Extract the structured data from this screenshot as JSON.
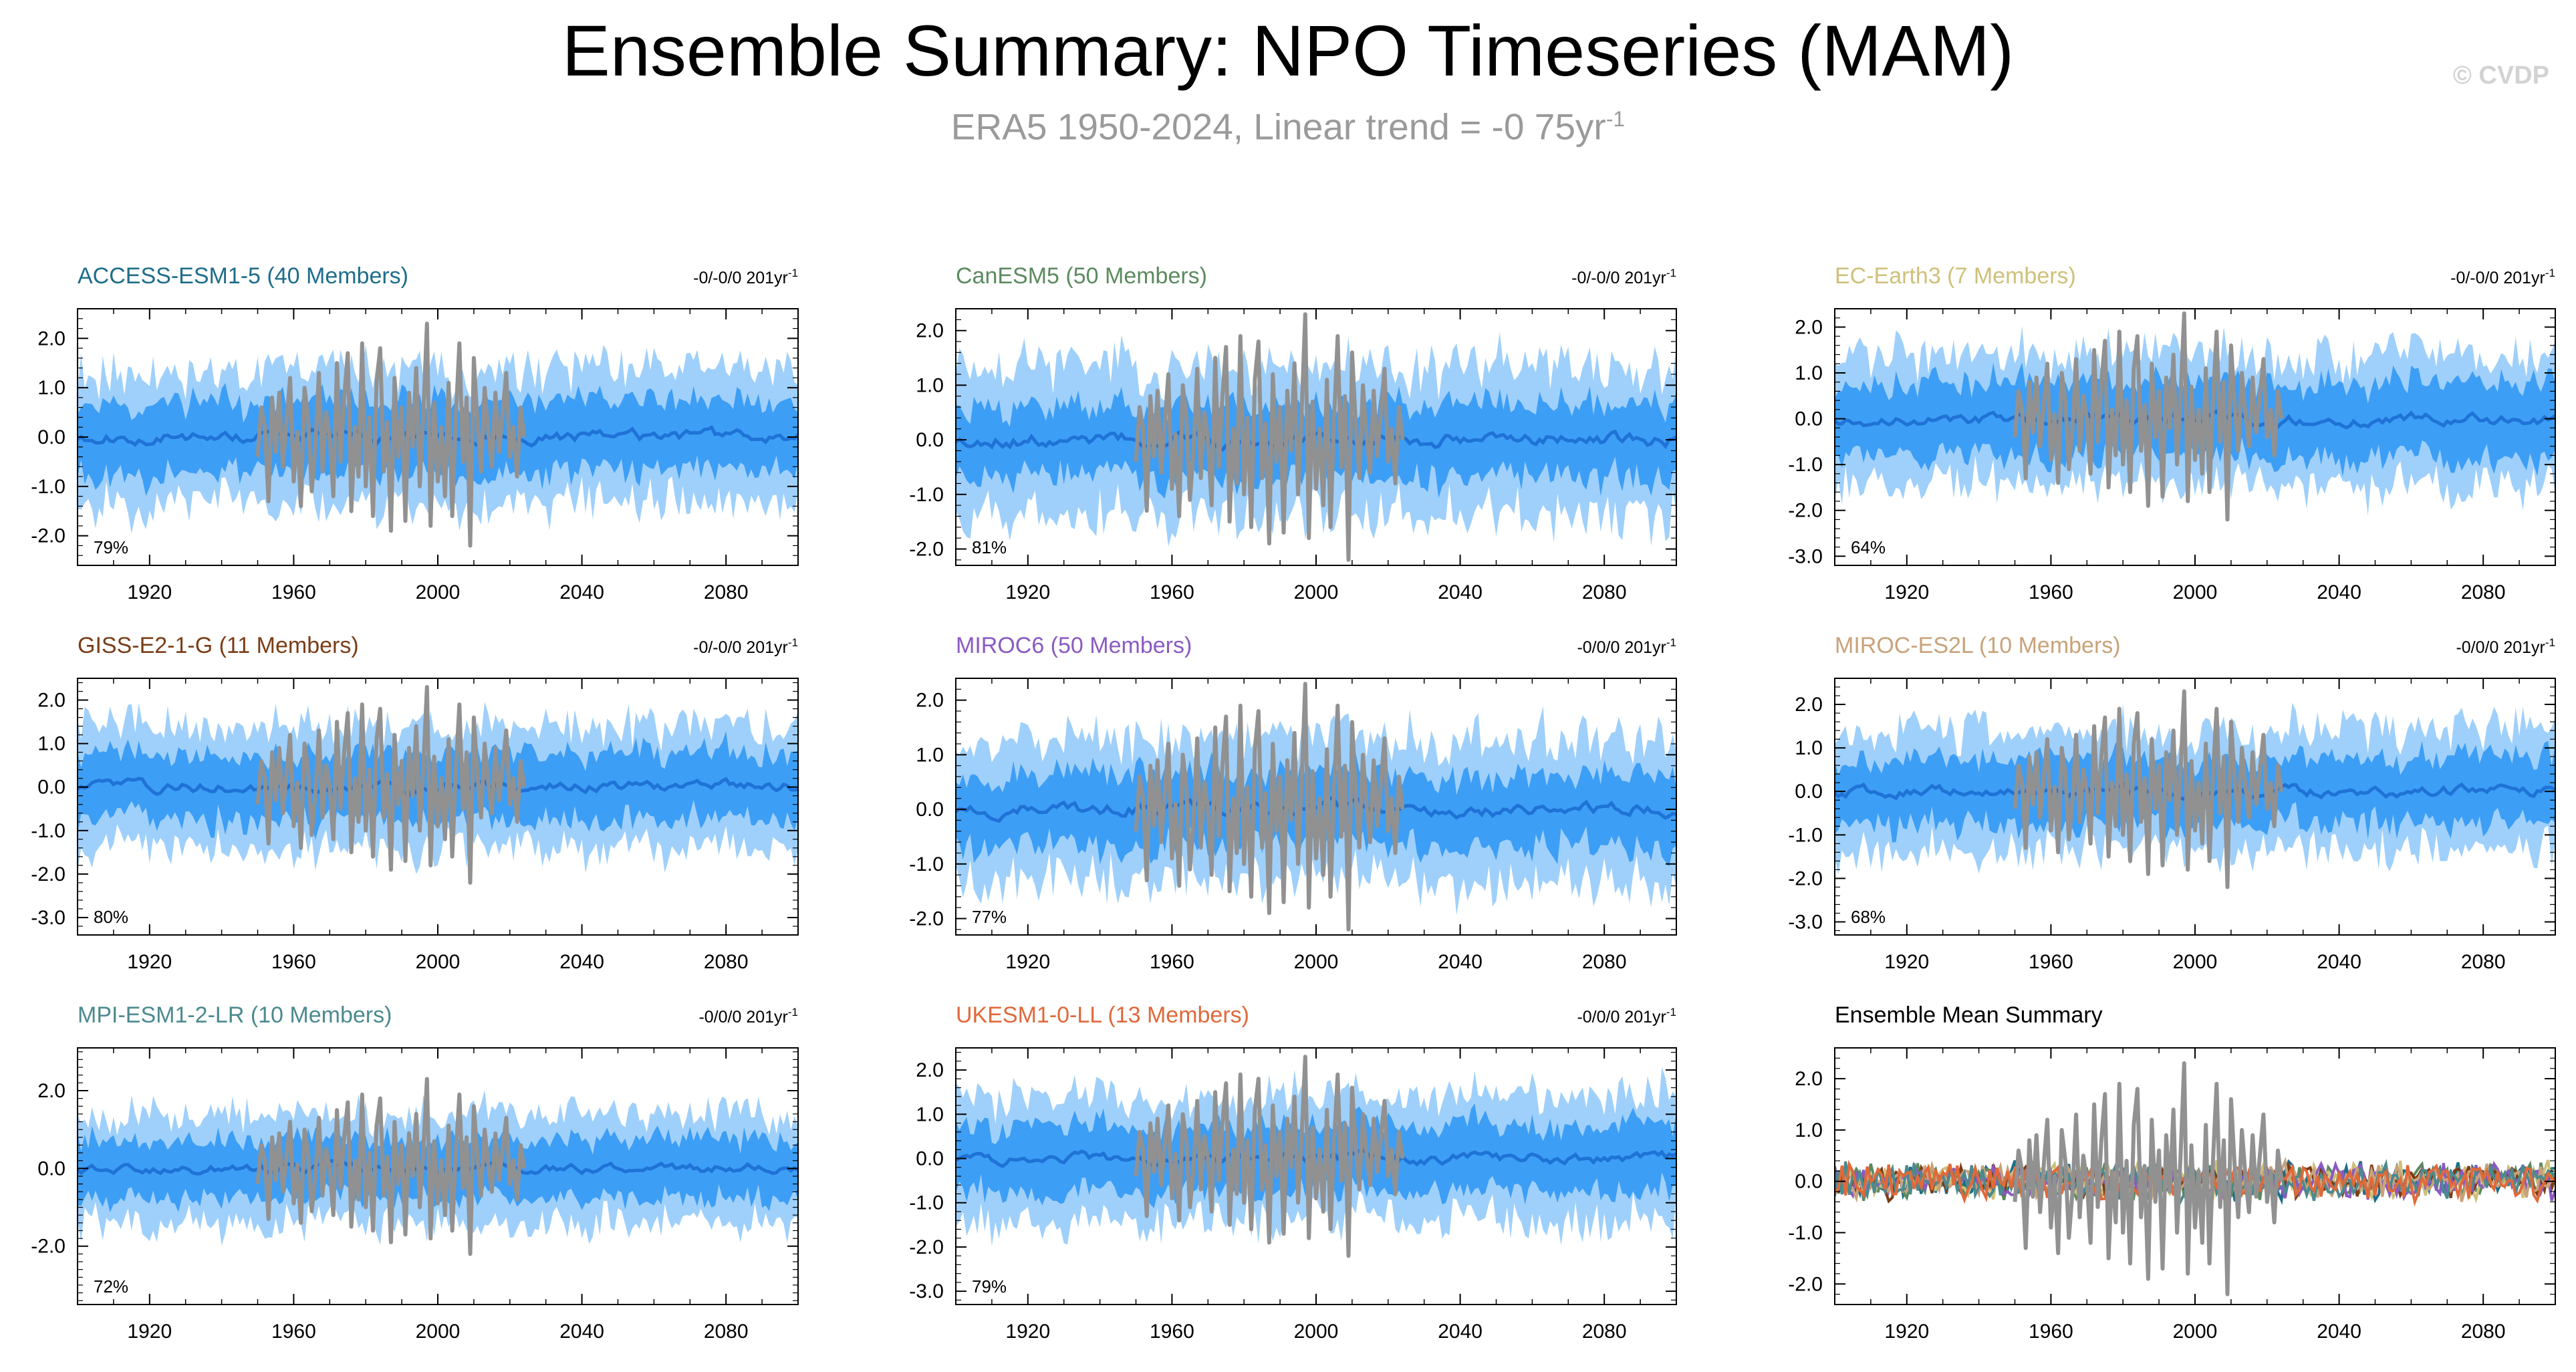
{
  "title": "Ensemble Summary: NPO Timeseries (MAM)",
  "subtitle": {
    "text": "ERA5 1950-2024, Linear trend = -0 75yr",
    "sup": "-1"
  },
  "watermark": "© CVDP",
  "colors": {
    "outer_band": "#9fd0fb",
    "inner_band": "#3d9ef5",
    "ensemble_mean": "#1f72d6",
    "observations": "#919191"
  },
  "chart_data": [
    {
      "type": "area",
      "title": "ACCESS-ESM1-5 (40 Members)",
      "title_color": "#1d6d8a",
      "trend": "-0/-0/0 201yr",
      "trend_sup": "-1",
      "percent": "79%",
      "xlim": [
        1900,
        2100
      ],
      "ylim": [
        -2.6,
        2.6
      ],
      "yticks": [
        2.0,
        1.0,
        0.0,
        -1.0,
        -2.0
      ],
      "ytick_labels": [
        "2.0",
        "1.0",
        "0.0",
        "-1.0",
        "-2.0"
      ],
      "xticks": [
        1920,
        1960,
        2000,
        2040,
        2080
      ],
      "xtick_labels": [
        "1920",
        "1960",
        "2000",
        "2040",
        "2080"
      ],
      "outer_halfwidth": 1.35,
      "inner_halfwidth": 0.7,
      "seed": 11
    },
    {
      "type": "area",
      "title": "CanESM5 (50 Members)",
      "title_color": "#5b8a5f",
      "trend": "-0/-0/0 201yr",
      "trend_sup": "-1",
      "percent": "81%",
      "xlim": [
        1900,
        2100
      ],
      "ylim": [
        -2.3,
        2.4
      ],
      "yticks": [
        2.0,
        1.0,
        0.0,
        -1.0,
        -2.0
      ],
      "ytick_labels": [
        "2.0",
        "1.0",
        "0.0",
        "-1.0",
        "-2.0"
      ],
      "xticks": [
        1920,
        1960,
        2000,
        2040,
        2080
      ],
      "xtick_labels": [
        "1920",
        "1960",
        "2000",
        "2040",
        "2080"
      ],
      "outer_halfwidth": 1.35,
      "inner_halfwidth": 0.65,
      "seed": 23
    },
    {
      "type": "area",
      "title": "EC-Earth3 (7 Members)",
      "title_color": "#cfc07a",
      "trend": "-0/-0/0 201yr",
      "trend_sup": "-1",
      "percent": "64%",
      "xlim": [
        1900,
        2100
      ],
      "ylim": [
        -3.2,
        2.4
      ],
      "yticks": [
        2.0,
        1.0,
        0.0,
        -1.0,
        -2.0,
        -3.0
      ],
      "ytick_labels": [
        "2.0",
        "1.0",
        "0.0",
        "-1.0",
        "-2.0",
        "-3.0"
      ],
      "xticks": [
        1920,
        1960,
        2000,
        2040,
        2080
      ],
      "xtick_labels": [
        "1920",
        "1960",
        "2000",
        "2040",
        "2080"
      ],
      "outer_halfwidth": 1.4,
      "inner_halfwidth": 0.8,
      "seed": 37
    },
    {
      "type": "area",
      "title": "GISS-E2-1-G (11 Members)",
      "title_color": "#7a3d16",
      "trend": "-0/-0/0 201yr",
      "trend_sup": "-1",
      "percent": "80%",
      "xlim": [
        1900,
        2100
      ],
      "ylim": [
        -3.4,
        2.5
      ],
      "yticks": [
        2.0,
        1.0,
        0.0,
        -1.0,
        -2.0,
        -3.0
      ],
      "ytick_labels": [
        "2.0",
        "1.0",
        "0.0",
        "-1.0",
        "-2.0",
        "-3.0"
      ],
      "xticks": [
        1920,
        1960,
        2000,
        2040,
        2080
      ],
      "xtick_labels": [
        "1920",
        "1960",
        "2000",
        "2040",
        "2080"
      ],
      "outer_halfwidth": 1.4,
      "inner_halfwidth": 0.75,
      "seed": 41
    },
    {
      "type": "area",
      "title": "MIROC6 (50 Members)",
      "title_color": "#8a5ac2",
      "trend": "-0/0/0 201yr",
      "trend_sup": "-1",
      "percent": "77%",
      "xlim": [
        1900,
        2100
      ],
      "ylim": [
        -2.3,
        2.4
      ],
      "yticks": [
        2.0,
        1.0,
        0.0,
        -1.0,
        -2.0
      ],
      "ytick_labels": [
        "2.0",
        "1.0",
        "0.0",
        "-1.0",
        "-2.0"
      ],
      "xticks": [
        1920,
        1960,
        2000,
        2040,
        2080
      ],
      "xtick_labels": [
        "1920",
        "1960",
        "2000",
        "2040",
        "2080"
      ],
      "outer_halfwidth": 1.3,
      "inner_halfwidth": 0.65,
      "seed": 53
    },
    {
      "type": "area",
      "title": "MIROC-ES2L (10 Members)",
      "title_color": "#c9a27a",
      "trend": "-0/0/0 201yr",
      "trend_sup": "-1",
      "percent": "68%",
      "xlim": [
        1900,
        2100
      ],
      "ylim": [
        -3.3,
        2.6
      ],
      "yticks": [
        2.0,
        1.0,
        0.0,
        -1.0,
        -2.0,
        -3.0
      ],
      "ytick_labels": [
        "2.0",
        "1.0",
        "0.0",
        "-1.0",
        "-2.0",
        "-3.0"
      ],
      "xticks": [
        1920,
        1960,
        2000,
        2040,
        2080
      ],
      "xtick_labels": [
        "1920",
        "1960",
        "2000",
        "2040",
        "2080"
      ],
      "outer_halfwidth": 1.4,
      "inner_halfwidth": 0.75,
      "seed": 67
    },
    {
      "type": "area",
      "title": "MPI-ESM1-2-LR (10 Members)",
      "title_color": "#4b8a8f",
      "trend": "-0/0/0 201yr",
      "trend_sup": "-1",
      "percent": "72%",
      "xlim": [
        1900,
        2100
      ],
      "ylim": [
        -3.5,
        3.1
      ],
      "yticks": [
        2.0,
        0.0,
        -2.0
      ],
      "ytick_labels": [
        "2.0",
        "0.0",
        "-2.0"
      ],
      "xticks": [
        1920,
        1960,
        2000,
        2040,
        2080
      ],
      "xtick_labels": [
        "1920",
        "1960",
        "2000",
        "2040",
        "2080"
      ],
      "outer_halfwidth": 1.4,
      "inner_halfwidth": 0.75,
      "seed": 79
    },
    {
      "type": "area",
      "title": "UKESM1-0-LL (13 Members)",
      "title_color": "#e0693a",
      "trend": "-0/0/0 201yr",
      "trend_sup": "-1",
      "percent": "79%",
      "xlim": [
        1900,
        2100
      ],
      "ylim": [
        -3.3,
        2.5
      ],
      "yticks": [
        2.0,
        1.0,
        0.0,
        -1.0,
        -2.0,
        -3.0
      ],
      "ytick_labels": [
        "2.0",
        "1.0",
        "0.0",
        "-1.0",
        "-2.0",
        "-3.0"
      ],
      "xticks": [
        1920,
        1960,
        2000,
        2040,
        2080
      ],
      "xtick_labels": [
        "1920",
        "1960",
        "2000",
        "2040",
        "2080"
      ],
      "outer_halfwidth": 1.4,
      "inner_halfwidth": 0.75,
      "seed": 83
    },
    {
      "type": "line",
      "title": "Ensemble Mean Summary",
      "title_color": "#000000",
      "trend": "",
      "trend_sup": "",
      "percent": "",
      "xlim": [
        1900,
        2100
      ],
      "ylim": [
        -2.4,
        2.6
      ],
      "yticks": [
        2.0,
        1.0,
        0.0,
        -1.0,
        -2.0
      ],
      "ytick_labels": [
        "2.0",
        "1.0",
        "0.0",
        "-1.0",
        "-2.0"
      ],
      "xticks": [
        1920,
        1960,
        2000,
        2040,
        2080
      ],
      "xtick_labels": [
        "1920",
        "1960",
        "2000",
        "2040",
        "2080"
      ],
      "series_colors": [
        "#1d6d8a",
        "#5b8a5f",
        "#cfc07a",
        "#7a3d16",
        "#8a5ac2",
        "#c9a27a",
        "#4b8a8f",
        "#e0693a"
      ],
      "amplitude": 0.3,
      "seed": 97
    }
  ],
  "observations": {
    "name": "ERA5",
    "start": 1950,
    "end": 2024,
    "values": [
      -0.4,
      0.6,
      0.2,
      -1.3,
      0.8,
      -0.3,
      0.9,
      -0.6,
      0.3,
      1.2,
      -0.9,
      0.1,
      -1.4,
      1.0,
      0.4,
      -1.1,
      -0.2,
      1.3,
      -0.7,
      0.5,
      0.0,
      -1.2,
      1.5,
      -0.5,
      0.8,
      1.7,
      -1.5,
      0.2,
      -0.8,
      1.9,
      -1.0,
      0.4,
      -1.6,
      1.1,
      1.8,
      -0.7,
      0.3,
      -1.9,
      1.2,
      -0.4,
      0.6,
      -1.7,
      0.9,
      -0.2,
      1.4,
      -1.0,
      0.5,
      2.3,
      -1.8,
      0.7,
      -0.9,
      0.2,
      -1.2,
      1.1,
      -1.6,
      0.4,
      1.9,
      -0.5,
      0.8,
      -2.2,
      1.6,
      0.3,
      -0.7,
      1.0,
      0.1,
      -0.6,
      0.9,
      -0.3,
      0.5,
      1.3,
      -0.4,
      0.2,
      -0.8,
      0.6,
      0.0
    ]
  }
}
